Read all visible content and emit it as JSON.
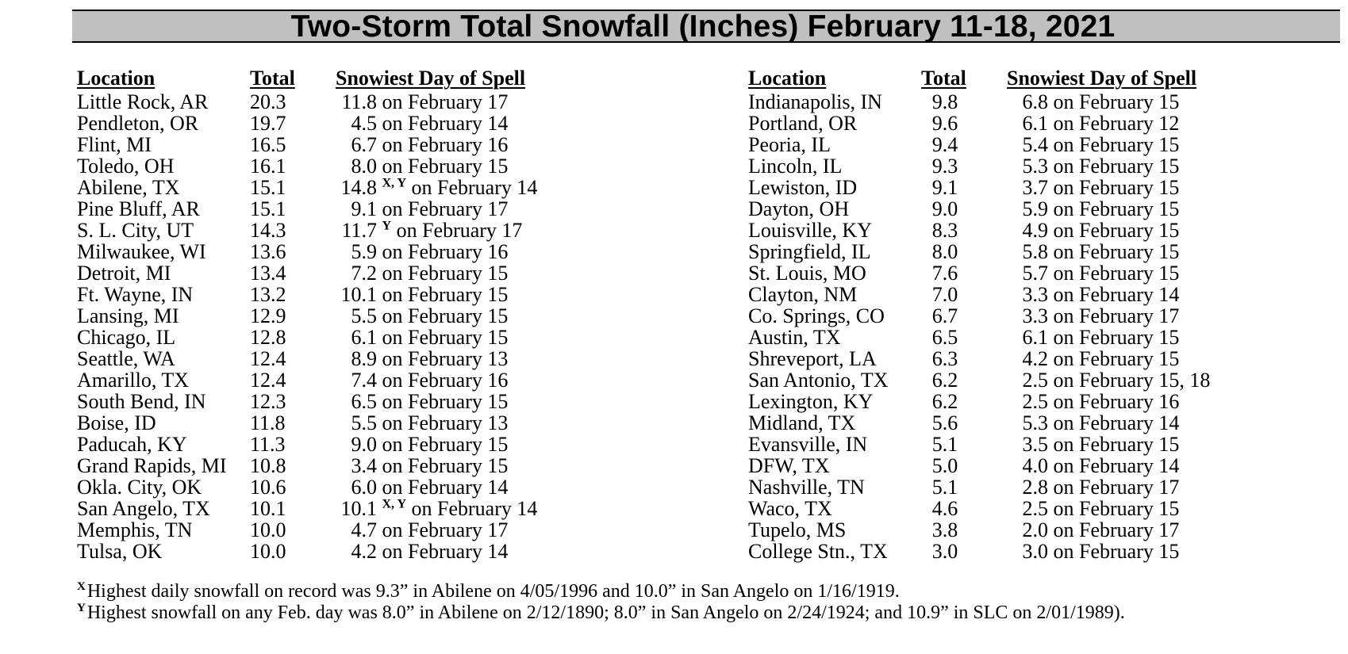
{
  "title": "Two-Storm Total Snowfall (Inches) February 11-18, 2021",
  "headers": {
    "location": "Location",
    "total": "Total",
    "snowiest": "Snowiest Day of Spell"
  },
  "left_rows": [
    {
      "location": "Little Rock, AR",
      "total": "20.3",
      "amount": "11.8",
      "sup": "",
      "date": "on February 17"
    },
    {
      "location": "Pendleton, OR",
      "total": "19.7",
      "amount": "4.5",
      "sup": "",
      "date": "on February 14"
    },
    {
      "location": "Flint, MI",
      "total": "16.5",
      "amount": "6.7",
      "sup": "",
      "date": "on February 16"
    },
    {
      "location": "Toledo, OH",
      "total": "16.1",
      "amount": "8.0",
      "sup": "",
      "date": "on February 15"
    },
    {
      "location": "Abilene, TX",
      "total": "15.1",
      "amount": "14.8",
      "sup": "X, Y",
      "date": "on February 14"
    },
    {
      "location": "Pine Bluff, AR",
      "total": "15.1",
      "amount": "9.1",
      "sup": "",
      "date": "on February 17"
    },
    {
      "location": "S. L. City, UT",
      "total": "14.3",
      "amount": "11.7",
      "sup": "Y",
      "date": "on February 17"
    },
    {
      "location": "Milwaukee, WI",
      "total": "13.6",
      "amount": "5.9",
      "sup": "",
      "date": "on February 16"
    },
    {
      "location": "Detroit, MI",
      "total": "13.4",
      "amount": "7.2",
      "sup": "",
      "date": "on February 15"
    },
    {
      "location": "Ft. Wayne, IN",
      "total": "13.2",
      "amount": "10.1",
      "sup": "",
      "date": "on February 15"
    },
    {
      "location": "Lansing, MI",
      "total": "12.9",
      "amount": "5.5",
      "sup": "",
      "date": "on February 15"
    },
    {
      "location": "Chicago, IL",
      "total": "12.8",
      "amount": "6.1",
      "sup": "",
      "date": "on February 15"
    },
    {
      "location": "Seattle, WA",
      "total": "12.4",
      "amount": "8.9",
      "sup": "",
      "date": "on February 13"
    },
    {
      "location": "Amarillo, TX",
      "total": "12.4",
      "amount": "7.4",
      "sup": "",
      "date": "on February 16"
    },
    {
      "location": "South Bend, IN",
      "total": "12.3",
      "amount": "6.5",
      "sup": "",
      "date": "on February 15"
    },
    {
      "location": "Boise, ID",
      "total": "11.8",
      "amount": "5.5",
      "sup": "",
      "date": "on February 13"
    },
    {
      "location": "Paducah, KY",
      "total": "11.3",
      "amount": "9.0",
      "sup": "",
      "date": "on February 15"
    },
    {
      "location": "Grand Rapids, MI",
      "total": "10.8",
      "amount": "3.4",
      "sup": "",
      "date": "on February 15"
    },
    {
      "location": "Okla. City, OK",
      "total": "10.6",
      "amount": "6.0",
      "sup": "",
      "date": "on February 14"
    },
    {
      "location": "San Angelo, TX",
      "total": "10.1",
      "amount": "10.1",
      "sup": "X, Y",
      "date": "on February 14"
    },
    {
      "location": "Memphis, TN",
      "total": "10.0",
      "amount": "4.7",
      "sup": "",
      "date": "on February 17"
    },
    {
      "location": "Tulsa, OK",
      "total": "10.0",
      "amount": "4.2",
      "sup": "",
      "date": "on February 14"
    }
  ],
  "right_rows": [
    {
      "location": "Indianapolis, IN",
      "total": "9.8",
      "amount": "6.8",
      "sup": "",
      "date": "on February 15"
    },
    {
      "location": "Portland, OR",
      "total": "9.6",
      "amount": "6.1",
      "sup": "",
      "date": "on February 12"
    },
    {
      "location": "Peoria, IL",
      "total": "9.4",
      "amount": "5.4",
      "sup": "",
      "date": "on February 15"
    },
    {
      "location": "Lincoln, IL",
      "total": "9.3",
      "amount": "5.3",
      "sup": "",
      "date": "on February 15"
    },
    {
      "location": "Lewiston, ID",
      "total": "9.1",
      "amount": "3.7",
      "sup": "",
      "date": "on February 15"
    },
    {
      "location": "Dayton, OH",
      "total": "9.0",
      "amount": "5.9",
      "sup": "",
      "date": "on February 15"
    },
    {
      "location": "Louisville, KY",
      "total": "8.3",
      "amount": "4.9",
      "sup": "",
      "date": "on February 15"
    },
    {
      "location": "Springfield, IL",
      "total": "8.0",
      "amount": "5.8",
      "sup": "",
      "date": "on February 15"
    },
    {
      "location": "St. Louis, MO",
      "total": "7.6",
      "amount": "5.7",
      "sup": "",
      "date": "on February 15"
    },
    {
      "location": "Clayton, NM",
      "total": "7.0",
      "amount": "3.3",
      "sup": "",
      "date": "on February 14"
    },
    {
      "location": "Co. Springs, CO",
      "total": "6.7",
      "amount": "3.3",
      "sup": "",
      "date": "on February 17"
    },
    {
      "location": "Austin, TX",
      "total": "6.5",
      "amount": "6.1",
      "sup": "",
      "date": "on February 15"
    },
    {
      "location": "Shreveport, LA",
      "total": "6.3",
      "amount": "4.2",
      "sup": "",
      "date": "on February 15"
    },
    {
      "location": "San Antonio, TX",
      "total": "6.2",
      "amount": "2.5",
      "sup": "",
      "date": "on February 15, 18"
    },
    {
      "location": "Lexington, KY",
      "total": "6.2",
      "amount": "2.5",
      "sup": "",
      "date": "on February 16"
    },
    {
      "location": "Midland, TX",
      "total": "5.6",
      "amount": "5.3",
      "sup": "",
      "date": "on February 14"
    },
    {
      "location": "Evansville, IN",
      "total": "5.1",
      "amount": "3.5",
      "sup": "",
      "date": "on February 15"
    },
    {
      "location": "DFW, TX",
      "total": "5.0",
      "amount": "4.0",
      "sup": "",
      "date": "on February 14"
    },
    {
      "location": "Nashville, TN",
      "total": "5.1",
      "amount": "2.8",
      "sup": "",
      "date": "on February 17"
    },
    {
      "location": "Waco, TX",
      "total": "4.6",
      "amount": "2.5",
      "sup": "",
      "date": "on February 15"
    },
    {
      "location": "Tupelo, MS",
      "total": "3.8",
      "amount": "2.0",
      "sup": "",
      "date": "on February 17"
    },
    {
      "location": "College Stn., TX",
      "total": "3.0",
      "amount": "3.0",
      "sup": "",
      "date": "on February 15"
    }
  ],
  "footnotes": [
    {
      "mark": "X",
      "text": "Highest daily snowfall on record was 9.3” in Abilene on 4/05/1996 and 10.0” in San Angelo on 1/16/1919."
    },
    {
      "mark": "Y",
      "text": "Highest snowfall on any Feb. day was 8.0” in Abilene on 2/12/1890; 8.0” in San Angelo on 2/24/1924; and 10.9” in SLC on 2/01/1989)."
    }
  ]
}
